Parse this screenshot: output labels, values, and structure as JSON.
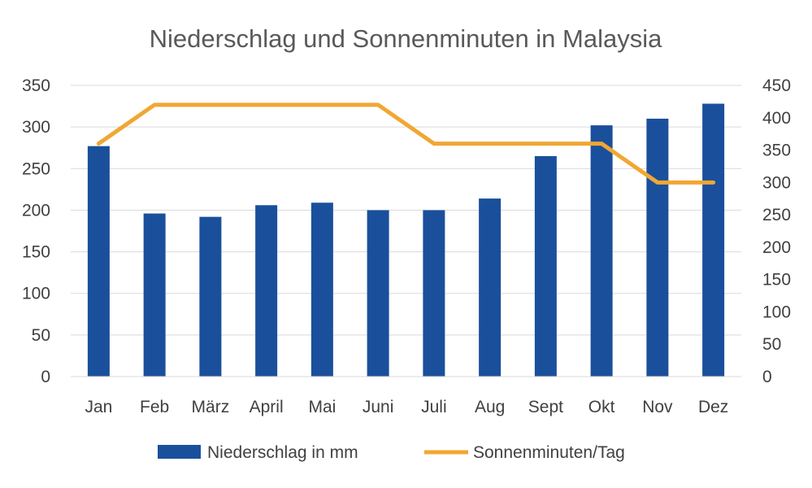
{
  "chart_data": {
    "type": "bar+line",
    "title": "Niederschlag und Sonnenminuten in Malaysia",
    "categories": [
      "Jan",
      "Feb",
      "März",
      "April",
      "Mai",
      "Juni",
      "Juli",
      "Aug",
      "Sept",
      "Okt",
      "Nov",
      "Dez"
    ],
    "series": [
      {
        "name": "Niederschlag in mm",
        "type": "bar",
        "axis": "left",
        "color": "#1a4f9c",
        "values": [
          277,
          196,
          192,
          206,
          209,
          200,
          200,
          214,
          265,
          302,
          310,
          328
        ]
      },
      {
        "name": "Sonnenminuten/Tag",
        "type": "line",
        "axis": "right",
        "color": "#f0a733",
        "values": [
          360,
          420,
          420,
          420,
          420,
          420,
          360,
          360,
          360,
          360,
          300,
          300
        ]
      }
    ],
    "y_left": {
      "min": 0,
      "max": 350,
      "ticks": [
        "0",
        "50",
        "100",
        "150",
        "200",
        "250",
        "300",
        "350"
      ]
    },
    "y_right": {
      "min": 0,
      "max": 450,
      "ticks": [
        "0",
        "50",
        "100",
        "150",
        "200",
        "250",
        "300",
        "350",
        "400",
        "450"
      ]
    },
    "grid": true,
    "gridline_color": "#d9d9d9",
    "legend_position": "bottom"
  }
}
